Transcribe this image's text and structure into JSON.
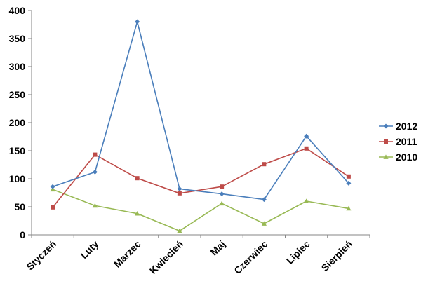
{
  "chart_data": {
    "type": "line",
    "title": "",
    "xlabel": "",
    "ylabel": "",
    "categories": [
      "Styczeń",
      "Luty",
      "Marzec",
      "Kwiecień",
      "Maj",
      "Czerwiec",
      "Lipiec",
      "Sierpień"
    ],
    "ylim": [
      0,
      400
    ],
    "yticks": [
      0,
      50,
      100,
      150,
      200,
      250,
      300,
      350,
      400
    ],
    "grid": false,
    "legend_position": "right",
    "series": [
      {
        "name": "2012",
        "color": "#4a7ebb",
        "marker": "diamond",
        "values": [
          86,
          112,
          380,
          82,
          73,
          63,
          176,
          92
        ]
      },
      {
        "name": "2011",
        "color": "#be4b48",
        "marker": "square",
        "values": [
          49,
          143,
          101,
          74,
          86,
          126,
          154,
          104
        ]
      },
      {
        "name": "2010",
        "color": "#98b954",
        "marker": "triangle",
        "values": [
          81,
          52,
          38,
          7,
          56,
          20,
          60,
          47
        ]
      }
    ]
  }
}
